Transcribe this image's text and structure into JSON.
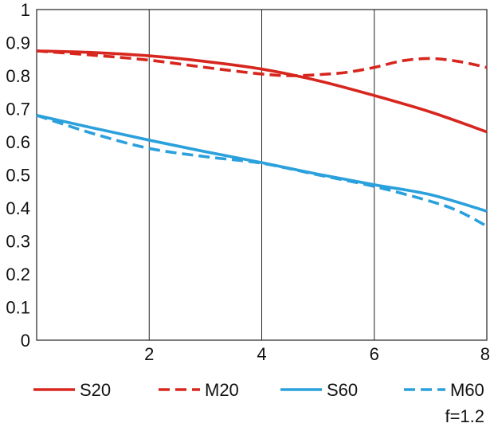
{
  "chart_data": {
    "type": "line",
    "title": "",
    "xlabel": "",
    "ylabel": "",
    "xlim": [
      0,
      8
    ],
    "ylim": [
      0,
      1
    ],
    "x_ticks": [
      2,
      4,
      6,
      8
    ],
    "y_ticks": [
      0,
      0.1,
      0.2,
      0.3,
      0.4,
      0.5,
      0.6,
      0.7,
      0.8,
      0.9,
      1
    ],
    "x_tick_labels": [
      "2",
      "4",
      "6",
      "8"
    ],
    "y_tick_labels": [
      "0",
      "0.1",
      "0.2",
      "0.3",
      "0.4",
      "0.5",
      "0.6",
      "0.7",
      "0.8",
      "0.9",
      "1"
    ],
    "grid": "vertical",
    "legend_position": "bottom",
    "annotation": "f=1.2",
    "series": [
      {
        "name": "S20",
        "color": "#d7261e",
        "style": "solid",
        "points": [
          [
            0,
            0.875
          ],
          [
            1,
            0.87
          ],
          [
            2,
            0.86
          ],
          [
            3,
            0.843
          ],
          [
            4,
            0.82
          ],
          [
            5,
            0.785
          ],
          [
            6,
            0.74
          ],
          [
            7,
            0.69
          ],
          [
            8,
            0.63
          ]
        ]
      },
      {
        "name": "M20",
        "color": "#d7261e",
        "style": "dashed",
        "points": [
          [
            0,
            0.875
          ],
          [
            1,
            0.862
          ],
          [
            2,
            0.847
          ],
          [
            3,
            0.825
          ],
          [
            4,
            0.805
          ],
          [
            4.5,
            0.8
          ],
          [
            5,
            0.803
          ],
          [
            5.5,
            0.81
          ],
          [
            6,
            0.825
          ],
          [
            6.5,
            0.845
          ],
          [
            7,
            0.852
          ],
          [
            7.5,
            0.843
          ],
          [
            8,
            0.825
          ]
        ]
      },
      {
        "name": "S60",
        "color": "#2aa0dc",
        "style": "solid",
        "points": [
          [
            0,
            0.68
          ],
          [
            1,
            0.642
          ],
          [
            2,
            0.605
          ],
          [
            3,
            0.57
          ],
          [
            4,
            0.537
          ],
          [
            5,
            0.502
          ],
          [
            6,
            0.47
          ],
          [
            7,
            0.44
          ],
          [
            8,
            0.39
          ]
        ]
      },
      {
        "name": "M60",
        "color": "#2aa0dc",
        "style": "dashed",
        "points": [
          [
            0,
            0.68
          ],
          [
            1,
            0.625
          ],
          [
            2,
            0.58
          ],
          [
            3,
            0.555
          ],
          [
            4,
            0.535
          ],
          [
            5,
            0.5
          ],
          [
            6,
            0.465
          ],
          [
            7,
            0.42
          ],
          [
            7.5,
            0.39
          ],
          [
            8,
            0.345
          ]
        ]
      }
    ]
  }
}
